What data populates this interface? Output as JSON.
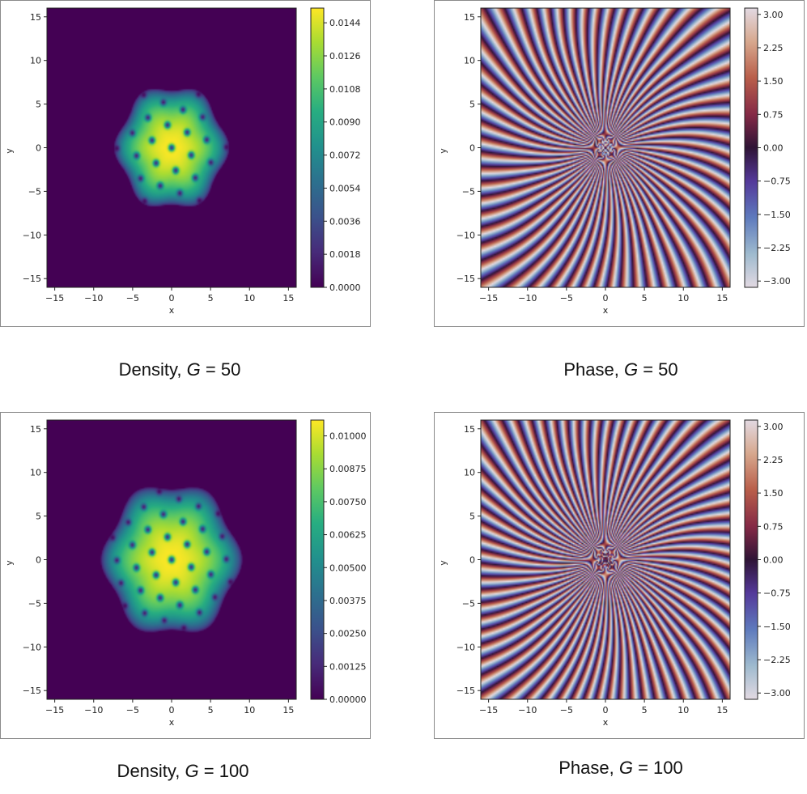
{
  "chart_data": [
    {
      "type": "heatmap",
      "quantity": "density",
      "title": "Density, G = 50",
      "caption_prefix": "Density,",
      "caption_var": "G",
      "caption_eq": "= 50",
      "xlabel": "x",
      "ylabel": "y",
      "xlim": [
        -16,
        16
      ],
      "ylim": [
        -16,
        16
      ],
      "xticks": [
        "−15",
        "−10",
        "−5",
        "0",
        "5",
        "10",
        "15"
      ],
      "yticks": [
        "15",
        "10",
        "5",
        "0",
        "−5",
        "−10",
        "−15"
      ],
      "colorbar_ticks": [
        "0.0000",
        "0.0018",
        "0.0036",
        "0.0054",
        "0.0072",
        "0.0090",
        "0.0108",
        "0.0126",
        "0.0144"
      ],
      "colorbar_range": [
        0,
        0.0152
      ],
      "colormap": "viridis",
      "cloud_radius": 7,
      "peak_value": 0.0149
    },
    {
      "type": "heatmap",
      "quantity": "phase",
      "title": "Phase, G = 50",
      "caption_prefix": "Phase,",
      "caption_var": "G",
      "caption_eq": "= 50",
      "xlabel": "x",
      "ylabel": "y",
      "xlim": [
        -16,
        16
      ],
      "ylim": [
        -16,
        16
      ],
      "xticks": [
        "−15",
        "−10",
        "−5",
        "0",
        "5",
        "10",
        "15"
      ],
      "yticks": [
        "15",
        "10",
        "5",
        "0",
        "−5",
        "−10",
        "−15"
      ],
      "colorbar_ticks": [
        "3.00",
        "2.25",
        "1.50",
        "0.75",
        "0.00",
        "−0.75",
        "−1.50",
        "−2.25",
        "−3.00"
      ],
      "colorbar_range": [
        -3.14159,
        3.14159
      ],
      "colormap": "twilight",
      "stripe_count": 60
    },
    {
      "type": "heatmap",
      "quantity": "density",
      "title": "Density, G = 100",
      "caption_prefix": "Density,",
      "caption_var": "G",
      "caption_eq": "= 100",
      "xlabel": "x",
      "ylabel": "y",
      "xlim": [
        -16,
        16
      ],
      "ylim": [
        -16,
        16
      ],
      "xticks": [
        "−15",
        "−10",
        "−5",
        "0",
        "5",
        "10",
        "15"
      ],
      "yticks": [
        "15",
        "10",
        "5",
        "0",
        "−5",
        "−10",
        "−15"
      ],
      "colorbar_ticks": [
        "0.00000",
        "0.00125",
        "0.00250",
        "0.00375",
        "0.00500",
        "0.00625",
        "0.00750",
        "0.00875",
        "0.01000"
      ],
      "colorbar_range": [
        0,
        0.0106
      ],
      "colormap": "viridis",
      "cloud_radius": 8.6,
      "peak_value": 0.0104
    },
    {
      "type": "heatmap",
      "quantity": "phase",
      "title": "Phase, G = 100",
      "caption_prefix": "Phase,",
      "caption_var": "G",
      "caption_eq": "= 100",
      "xlabel": "x",
      "ylabel": "y",
      "xlim": [
        -16,
        16
      ],
      "ylim": [
        -16,
        16
      ],
      "xticks": [
        "−15",
        "−10",
        "−5",
        "0",
        "5",
        "10",
        "15"
      ],
      "yticks": [
        "15",
        "10",
        "5",
        "0",
        "−5",
        "−10",
        "−15"
      ],
      "colorbar_ticks": [
        "3.00",
        "2.25",
        "1.50",
        "0.75",
        "0.00",
        "−0.75",
        "−1.50",
        "−2.25",
        "−3.00"
      ],
      "colorbar_range": [
        -3.14159,
        3.14159
      ],
      "colormap": "twilight",
      "stripe_count": 68
    }
  ]
}
